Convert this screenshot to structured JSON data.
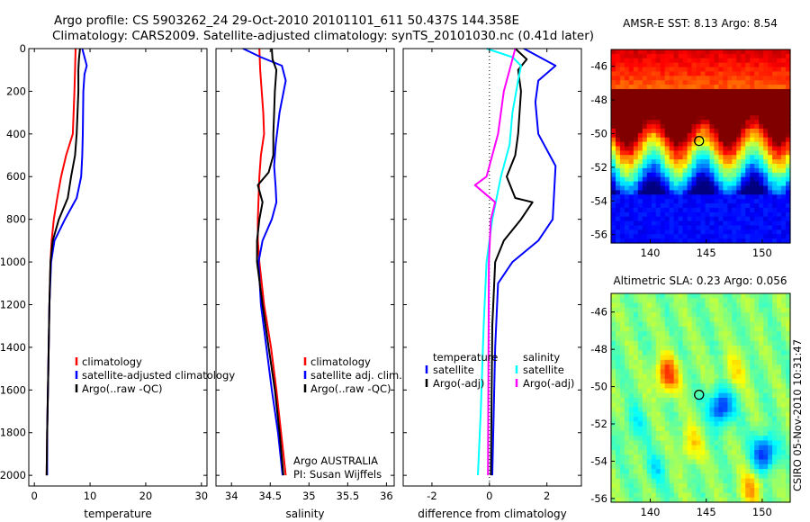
{
  "header": {
    "line1": "Argo profile: CS 5903262_24 29-Oct-2010 20101101_611 50.437S 144.358E",
    "line2": "Climatology: CARS2009. Satellite-adjusted climatology: synTS_20101030.nc (0.41d later)"
  },
  "credit": "CSIRO 05-Nov-2010 10:31:47",
  "colors": {
    "climatology": "#ff0000",
    "satellite": "#0000ff",
    "argo": "#000000",
    "argo_adj_salinity": "#ff00ff",
    "satellite_salinity": "#00ffff"
  },
  "chart_data": [
    {
      "type": "line",
      "id": "temperature",
      "xlabel": "temperature",
      "xlim": [
        -1,
        31
      ],
      "ylim": [
        0,
        2050
      ],
      "y_reversed": true,
      "xticks": [
        "0",
        "10",
        "20",
        "30"
      ],
      "yticks": [
        "0",
        "200",
        "400",
        "600",
        "800",
        "1000",
        "1200",
        "1400",
        "1600",
        "1800",
        "2000"
      ],
      "legend": [
        "climatology",
        "satellite-adjusted climatology",
        "Argo(..raw -QC)"
      ],
      "series": [
        {
          "name": "climatology",
          "color": "#ff0000",
          "points": [
            [
              7.4,
              0
            ],
            [
              7.3,
              100
            ],
            [
              7.2,
              200
            ],
            [
              6.9,
              400
            ],
            [
              5.7,
              500
            ],
            [
              4.8,
              600
            ],
            [
              4.1,
              700
            ],
            [
              3.5,
              800
            ],
            [
              3.1,
              900
            ],
            [
              2.9,
              1000
            ],
            [
              2.7,
              1200
            ],
            [
              2.5,
              1500
            ],
            [
              2.3,
              1800
            ],
            [
              2.2,
              2000
            ]
          ]
        },
        {
          "name": "satellite-adjusted climatology",
          "color": "#0000ff",
          "points": [
            [
              8.6,
              0
            ],
            [
              9.4,
              80
            ],
            [
              9.0,
              120
            ],
            [
              8.8,
              200
            ],
            [
              8.7,
              400
            ],
            [
              8.6,
              500
            ],
            [
              8.4,
              600
            ],
            [
              7.6,
              700
            ],
            [
              5.5,
              800
            ],
            [
              3.6,
              900
            ],
            [
              3.0,
              1000
            ],
            [
              2.7,
              1200
            ],
            [
              2.5,
              1500
            ],
            [
              2.3,
              1800
            ],
            [
              2.3,
              2000
            ]
          ]
        },
        {
          "name": "Argo(..raw -QC)",
          "color": "#000000",
          "points": [
            [
              8.2,
              0
            ],
            [
              8.0,
              50
            ],
            [
              7.9,
              100
            ],
            [
              7.9,
              200
            ],
            [
              7.6,
              400
            ],
            [
              7.3,
              500
            ],
            [
              6.6,
              600
            ],
            [
              6.0,
              700
            ],
            [
              4.4,
              800
            ],
            [
              3.3,
              900
            ],
            [
              2.9,
              1000
            ],
            [
              2.7,
              1200
            ],
            [
              2.5,
              1500
            ],
            [
              2.3,
              1800
            ],
            [
              2.2,
              2000
            ]
          ]
        }
      ]
    },
    {
      "type": "line",
      "id": "salinity",
      "xlabel": "salinity",
      "xlim": [
        33.8,
        36.1
      ],
      "ylim": [
        0,
        2050
      ],
      "y_reversed": true,
      "xticks": [
        "34",
        "34.5",
        "35",
        "35.5",
        "36"
      ],
      "legend": [
        "climatology",
        "satellite adj. clim.",
        "Argo(..raw -QC)"
      ],
      "annotation": [
        "Argo AUSTRALIA",
        "PI: Susan Wijffels"
      ],
      "series": [
        {
          "name": "climatology",
          "color": "#ff0000",
          "points": [
            [
              34.36,
              0
            ],
            [
              34.37,
              100
            ],
            [
              34.39,
              200
            ],
            [
              34.41,
              300
            ],
            [
              34.42,
              400
            ],
            [
              34.38,
              500
            ],
            [
              34.36,
              600
            ],
            [
              34.35,
              700
            ],
            [
              34.34,
              800
            ],
            [
              34.34,
              900
            ],
            [
              34.36,
              1000
            ],
            [
              34.42,
              1200
            ],
            [
              34.51,
              1400
            ],
            [
              34.58,
              1600
            ],
            [
              34.64,
              1800
            ],
            [
              34.7,
              2000
            ]
          ]
        },
        {
          "name": "satellite adj. clim.",
          "color": "#0000ff",
          "points": [
            [
              34.15,
              0
            ],
            [
              34.38,
              40
            ],
            [
              34.65,
              80
            ],
            [
              34.7,
              150
            ],
            [
              34.62,
              300
            ],
            [
              34.57,
              450
            ],
            [
              34.55,
              550
            ],
            [
              34.57,
              650
            ],
            [
              34.58,
              720
            ],
            [
              34.52,
              800
            ],
            [
              34.4,
              900
            ],
            [
              34.35,
              1000
            ],
            [
              34.38,
              1200
            ],
            [
              34.45,
              1400
            ],
            [
              34.52,
              1600
            ],
            [
              34.6,
              1800
            ],
            [
              34.66,
              2000
            ]
          ]
        },
        {
          "name": "Argo(..raw -QC)",
          "color": "#000000",
          "points": [
            [
              34.52,
              0
            ],
            [
              34.53,
              50
            ],
            [
              34.58,
              100
            ],
            [
              34.56,
              200
            ],
            [
              34.55,
              300
            ],
            [
              34.54,
              400
            ],
            [
              34.54,
              500
            ],
            [
              34.48,
              580
            ],
            [
              34.34,
              640
            ],
            [
              34.4,
              720
            ],
            [
              34.36,
              800
            ],
            [
              34.33,
              900
            ],
            [
              34.33,
              1000
            ],
            [
              34.4,
              1200
            ],
            [
              34.48,
              1400
            ],
            [
              34.56,
              1600
            ],
            [
              34.62,
              1800
            ],
            [
              34.67,
              2000
            ]
          ]
        }
      ]
    },
    {
      "type": "line",
      "id": "difference",
      "xlabel": "difference from climatology",
      "xlim": [
        -3,
        3.2
      ],
      "ylim": [
        0,
        2050
      ],
      "y_reversed": true,
      "xticks": [
        "-2",
        "0",
        "2"
      ],
      "legend_left": [
        "temperature",
        "satellite",
        "Argo(-adj)"
      ],
      "legend_right": [
        "salinity",
        "satellite",
        "Argo(-adj)"
      ],
      "series": [
        {
          "name": "temperature satellite",
          "color": "#0000ff",
          "points": [
            [
              1.2,
              0
            ],
            [
              2.3,
              80
            ],
            [
              1.7,
              150
            ],
            [
              1.6,
              250
            ],
            [
              1.7,
              400
            ],
            [
              2.3,
              550
            ],
            [
              2.2,
              800
            ],
            [
              1.7,
              900
            ],
            [
              0.8,
              1000
            ],
            [
              0.3,
              1100
            ],
            [
              0.2,
              1400
            ],
            [
              0.1,
              2000
            ]
          ]
        },
        {
          "name": "temperature Argo(-adj)",
          "color": "#000000",
          "points": [
            [
              0.9,
              0
            ],
            [
              1.3,
              50
            ],
            [
              1.0,
              100
            ],
            [
              1.1,
              200
            ],
            [
              1.0,
              400
            ],
            [
              0.9,
              500
            ],
            [
              0.6,
              600
            ],
            [
              0.9,
              700
            ],
            [
              1.5,
              720
            ],
            [
              1.1,
              800
            ],
            [
              0.5,
              900
            ],
            [
              0.2,
              1000
            ],
            [
              0.1,
              1300
            ],
            [
              0.05,
              2000
            ]
          ]
        },
        {
          "name": "salinity satellite",
          "color": "#00ffff",
          "points": [
            [
              -0.1,
              0
            ],
            [
              0.8,
              40
            ],
            [
              1.1,
              80
            ],
            [
              1.0,
              150
            ],
            [
              0.8,
              300
            ],
            [
              0.7,
              450
            ],
            [
              0.4,
              600
            ],
            [
              0.1,
              800
            ],
            [
              -0.1,
              1000
            ],
            [
              -0.2,
              1300
            ],
            [
              -0.3,
              1700
            ],
            [
              -0.4,
              2000
            ]
          ]
        },
        {
          "name": "salinity Argo(-adj)",
          "color": "#ff00ff",
          "points": [
            [
              0.9,
              0
            ],
            [
              0.7,
              100
            ],
            [
              0.5,
              200
            ],
            [
              0.3,
              400
            ],
            [
              -0.1,
              600
            ],
            [
              -0.5,
              640
            ],
            [
              0.2,
              720
            ],
            [
              0.05,
              800
            ],
            [
              -0.02,
              1000
            ],
            [
              -0.05,
              2000
            ]
          ]
        }
      ]
    }
  ],
  "maps": [
    {
      "id": "sst",
      "title": "AMSR-E SST: 8.13 Argo: 8.54",
      "xticks": [
        "140",
        "145",
        "150"
      ],
      "yticks": [
        "-46",
        "-48",
        "-50",
        "-52",
        "-54",
        "-56"
      ],
      "marker": [
        144.358,
        -50.437
      ]
    },
    {
      "id": "sla",
      "title": "Altimetric SLA: 0.23 Argo: 0.056",
      "xticks": [
        "140",
        "145",
        "150"
      ],
      "yticks": [
        "-46",
        "-48",
        "-50",
        "-52",
        "-54",
        "-56"
      ],
      "marker": [
        144.358,
        -50.437
      ]
    }
  ]
}
